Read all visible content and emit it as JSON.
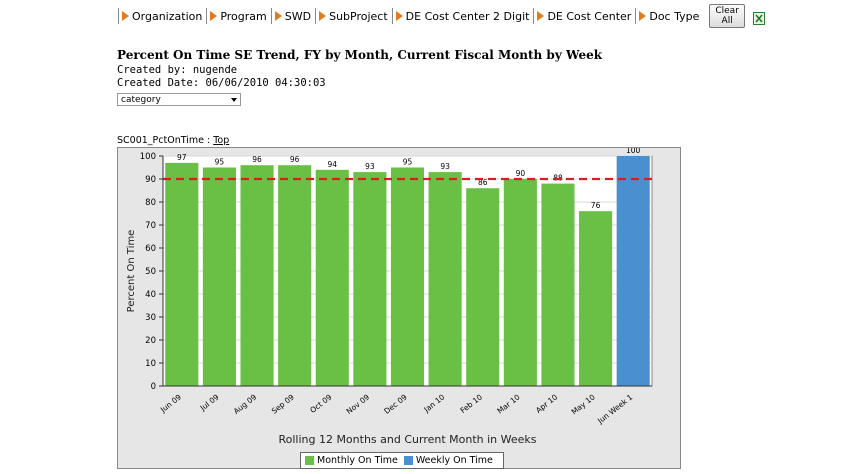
{
  "toolbar": {
    "filters": [
      "Organization",
      "Program",
      "SWD",
      "SubProject",
      "DE Cost Center 2 Digit",
      "DE Cost Center",
      "Doc Type"
    ],
    "clear_label": "Clear All",
    "export_icon": "excel-icon",
    "arrow_color": "#e07b1f"
  },
  "report": {
    "title": "Percent On Time SE Trend, FY by Month, Current Fiscal Month by Week",
    "created_by": "Created by:  nugende",
    "created_date": "Created Date:  06/06/2010 04:30:03",
    "select_value": "category",
    "breadcrumb_prefix": "SC001_PctOnTime : ",
    "breadcrumb_link": "Top"
  },
  "chart_data": {
    "type": "bar",
    "title": "",
    "xlabel": "Rolling 12 Months and Current Month in Weeks",
    "ylabel": "Percent On Time",
    "ylim": [
      0,
      100
    ],
    "yticks": [
      0,
      10,
      20,
      30,
      40,
      50,
      60,
      70,
      80,
      90,
      100
    ],
    "categories": [
      "Jun 09",
      "Jul 09",
      "Aug 09",
      "Sep 09",
      "Oct 09",
      "Nov 09",
      "Dec 09",
      "Jan 10",
      "Feb 10",
      "Mar 10",
      "Apr 10",
      "May 10",
      "Jun Week 1"
    ],
    "values": [
      97,
      95,
      96,
      96,
      94,
      93,
      95,
      93,
      86,
      90,
      88,
      76,
      100
    ],
    "bar_series": [
      "Monthly On Time",
      "Monthly On Time",
      "Monthly On Time",
      "Monthly On Time",
      "Monthly On Time",
      "Monthly On Time",
      "Monthly On Time",
      "Monthly On Time",
      "Monthly On Time",
      "Monthly On Time",
      "Monthly On Time",
      "Monthly On Time",
      "Weekly On Time"
    ],
    "series": [
      {
        "name": "Monthly On Time",
        "color": "#6abf45"
      },
      {
        "name": "Weekly On Time",
        "color": "#4a90d0"
      }
    ],
    "target_line": {
      "value": 90,
      "color": "#d42020"
    },
    "grid": true,
    "legend_position": "bottom-center"
  }
}
